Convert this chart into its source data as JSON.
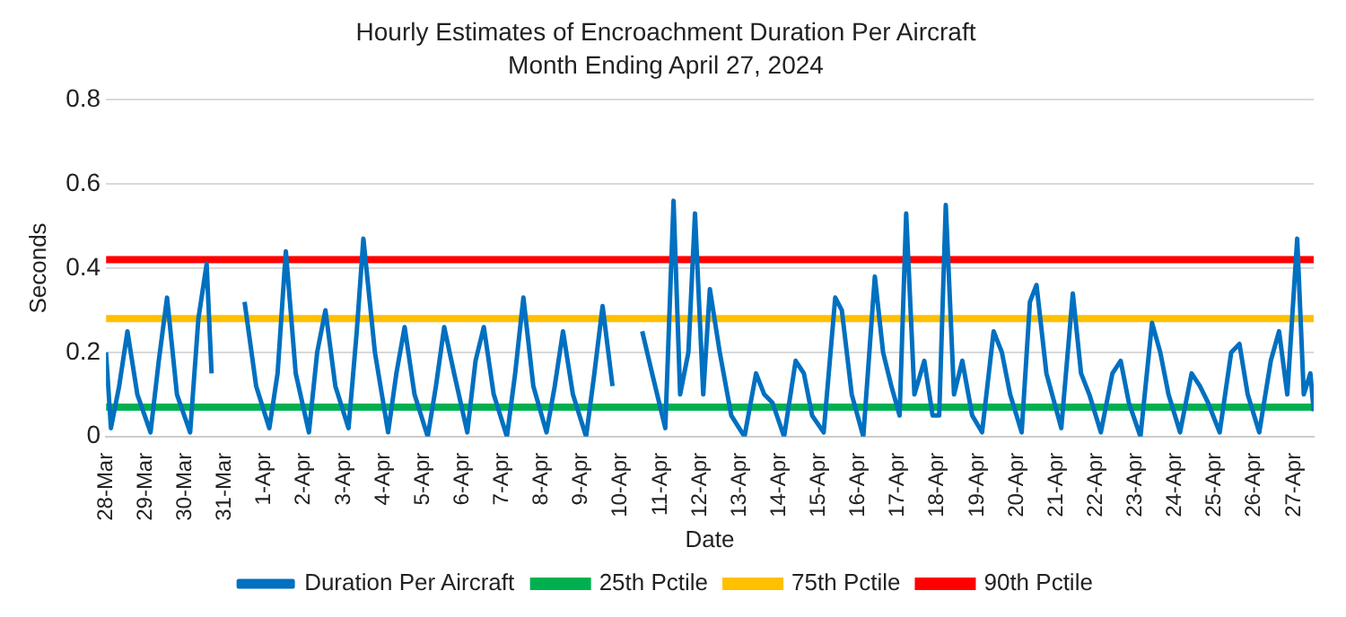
{
  "chart_data": {
    "type": "line",
    "title": "Hourly Estimates of Encroachment Duration Per Aircraft",
    "subtitle": "Month Ending April 27, 2024",
    "xlabel": "Date",
    "ylabel": "Seconds",
    "xlim": [
      "2024-03-28T00:00",
      "2024-04-27T12:00"
    ],
    "xticks": [
      {
        "value": "2024-03-28",
        "label": "28-Mar"
      },
      {
        "value": "2024-03-29",
        "label": "29-Mar"
      },
      {
        "value": "2024-03-30",
        "label": "30-Mar"
      },
      {
        "value": "2024-03-31",
        "label": "31-Mar"
      },
      {
        "value": "2024-04-01",
        "label": "1-Apr"
      },
      {
        "value": "2024-04-02",
        "label": "2-Apr"
      },
      {
        "value": "2024-04-03",
        "label": "3-Apr"
      },
      {
        "value": "2024-04-04",
        "label": "4-Apr"
      },
      {
        "value": "2024-04-05",
        "label": "5-Apr"
      },
      {
        "value": "2024-04-06",
        "label": "6-Apr"
      },
      {
        "value": "2024-04-07",
        "label": "7-Apr"
      },
      {
        "value": "2024-04-08",
        "label": "8-Apr"
      },
      {
        "value": "2024-04-09",
        "label": "9-Apr"
      },
      {
        "value": "2024-04-10",
        "label": "10-Apr"
      },
      {
        "value": "2024-04-11",
        "label": "11-Apr"
      },
      {
        "value": "2024-04-12",
        "label": "12-Apr"
      },
      {
        "value": "2024-04-13",
        "label": "13-Apr"
      },
      {
        "value": "2024-04-14",
        "label": "14-Apr"
      },
      {
        "value": "2024-04-15",
        "label": "15-Apr"
      },
      {
        "value": "2024-04-16",
        "label": "16-Apr"
      },
      {
        "value": "2024-04-17",
        "label": "17-Apr"
      },
      {
        "value": "2024-04-18",
        "label": "18-Apr"
      },
      {
        "value": "2024-04-19",
        "label": "19-Apr"
      },
      {
        "value": "2024-04-20",
        "label": "20-Apr"
      },
      {
        "value": "2024-04-21",
        "label": "21-Apr"
      },
      {
        "value": "2024-04-22",
        "label": "22-Apr"
      },
      {
        "value": "2024-04-23",
        "label": "23-Apr"
      },
      {
        "value": "2024-04-24",
        "label": "24-Apr"
      },
      {
        "value": "2024-04-25",
        "label": "25-Apr"
      },
      {
        "value": "2024-04-26",
        "label": "26-Apr"
      },
      {
        "value": "2024-04-27",
        "label": "27-Apr"
      }
    ],
    "ylim": [
      0,
      0.8
    ],
    "yticks": [
      0,
      0.2,
      0.4,
      0.6,
      0.8
    ],
    "grid": "y",
    "legend": "bottom",
    "marker": "none",
    "line_style": "solid",
    "series": [
      {
        "name": "Duration Per Aircraft",
        "color": "#0070c0",
        "x": [
          "2024-03-28T00:00",
          "2024-03-28T03:00",
          "2024-03-28T08:00",
          "2024-03-28T13:00",
          "2024-03-28T19:00",
          "2024-03-29T03:00",
          "2024-03-29T08:00",
          "2024-03-29T13:00",
          "2024-03-29T19:00",
          "2024-03-30T03:00",
          "2024-03-30T08:00",
          "2024-03-30T13:00",
          "2024-03-30T16:00",
          "2024-03-30T18:00",
          "2024-03-31T12:00",
          "2024-03-31T19:00",
          "2024-04-01T03:00",
          "2024-04-01T08:00",
          "2024-04-01T13:00",
          "2024-04-01T19:00",
          "2024-04-02T03:00",
          "2024-04-02T08:00",
          "2024-04-02T13:00",
          "2024-04-02T19:00",
          "2024-04-03T03:00",
          "2024-04-03T08:00",
          "2024-04-03T12:00",
          "2024-04-03T19:00",
          "2024-04-04T03:00",
          "2024-04-04T08:00",
          "2024-04-04T13:00",
          "2024-04-04T19:00",
          "2024-04-05T03:00",
          "2024-04-05T08:00",
          "2024-04-05T13:00",
          "2024-04-05T19:00",
          "2024-04-06T03:00",
          "2024-04-06T08:00",
          "2024-04-06T13:00",
          "2024-04-06T19:00",
          "2024-04-07T03:00",
          "2024-04-07T08:00",
          "2024-04-07T13:00",
          "2024-04-07T19:00",
          "2024-04-08T03:00",
          "2024-04-08T08:00",
          "2024-04-08T13:00",
          "2024-04-08T19:00",
          "2024-04-09T03:00",
          "2024-04-09T08:00",
          "2024-04-09T13:00",
          "2024-04-09T19:00",
          "2024-04-09T22:00",
          "2024-04-10T13:00",
          "2024-04-10T19:00",
          "2024-04-11T03:00",
          "2024-04-11T08:00",
          "2024-04-11T12:00",
          "2024-04-11T17:00",
          "2024-04-11T21:00",
          "2024-04-12T02:00",
          "2024-04-12T06:00",
          "2024-04-12T12:00",
          "2024-04-12T19:00",
          "2024-04-13T03:00",
          "2024-04-13T10:00",
          "2024-04-13T15:00",
          "2024-04-13T20:00",
          "2024-04-14T03:00",
          "2024-04-14T10:00",
          "2024-04-14T15:00",
          "2024-04-14T20:00",
          "2024-04-15T03:00",
          "2024-04-15T10:00",
          "2024-04-15T14:00",
          "2024-04-15T20:00",
          "2024-04-16T03:00",
          "2024-04-16T10:00",
          "2024-04-16T15:00",
          "2024-04-16T20:00",
          "2024-04-17T01:00",
          "2024-04-17T05:00",
          "2024-04-17T10:00",
          "2024-04-17T16:00",
          "2024-04-17T21:00",
          "2024-04-18T01:00",
          "2024-04-18T05:00",
          "2024-04-18T10:00",
          "2024-04-18T15:00",
          "2024-04-18T21:00",
          "2024-04-19T03:00",
          "2024-04-19T10:00",
          "2024-04-19T15:00",
          "2024-04-19T20:00",
          "2024-04-20T03:00",
          "2024-04-20T08:00",
          "2024-04-20T12:00",
          "2024-04-20T18:00",
          "2024-04-21T03:00",
          "2024-04-21T10:00",
          "2024-04-21T15:00",
          "2024-04-21T20:00",
          "2024-04-22T03:00",
          "2024-04-22T10:00",
          "2024-04-22T15:00",
          "2024-04-22T20:00",
          "2024-04-23T03:00",
          "2024-04-23T10:00",
          "2024-04-23T15:00",
          "2024-04-23T20:00",
          "2024-04-24T03:00",
          "2024-04-24T10:00",
          "2024-04-24T15:00",
          "2024-04-24T20:00",
          "2024-04-25T03:00",
          "2024-04-25T10:00",
          "2024-04-25T15:00",
          "2024-04-25T20:00",
          "2024-04-26T03:00",
          "2024-04-26T10:00",
          "2024-04-26T15:00",
          "2024-04-26T20:00",
          "2024-04-27T02:00",
          "2024-04-27T06:00",
          "2024-04-27T10:00",
          "2024-04-27T12:00"
        ],
        "values": [
          0.2,
          0.02,
          0.12,
          0.25,
          0.1,
          0.01,
          0.18,
          0.33,
          0.1,
          0.01,
          0.28,
          0.41,
          0.15,
          null,
          0.32,
          0.12,
          0.02,
          0.15,
          0.44,
          0.15,
          0.01,
          0.2,
          0.3,
          0.12,
          0.02,
          0.25,
          0.47,
          0.2,
          0.01,
          0.15,
          0.26,
          0.1,
          0,
          0.12,
          0.26,
          0.15,
          0.01,
          0.18,
          0.26,
          0.1,
          0,
          0.15,
          0.33,
          0.12,
          0.01,
          0.12,
          0.25,
          0.1,
          0,
          0.15,
          0.31,
          0.12,
          null,
          0.25,
          0.15,
          0.02,
          0.56,
          0.1,
          0.2,
          0.53,
          0.1,
          0.35,
          0.2,
          0.05,
          0,
          0.15,
          0.1,
          0.08,
          0,
          0.18,
          0.15,
          0.05,
          0.01,
          0.33,
          0.3,
          0.1,
          0,
          0.38,
          0.2,
          0.12,
          0.05,
          0.53,
          0.1,
          0.18,
          0.05,
          0.05,
          0.55,
          0.1,
          0.18,
          0.05,
          0.01,
          0.25,
          0.2,
          0.1,
          0.01,
          0.32,
          0.36,
          0.15,
          0.02,
          0.34,
          0.15,
          0.1,
          0.01,
          0.15,
          0.18,
          0.08,
          0,
          0.27,
          0.2,
          0.1,
          0.01,
          0.15,
          0.12,
          0.08,
          0.01,
          0.2,
          0.22,
          0.1,
          0.01,
          0.18,
          0.25,
          0.1,
          0.47,
          0.1,
          0.15,
          0.06
        ]
      }
    ],
    "ref_lines": [
      {
        "axis": "y",
        "value": 0.07,
        "label": "25th Pctile",
        "color": "#00b050"
      },
      {
        "axis": "y",
        "value": 0.28,
        "label": "75th Pctile",
        "color": "#ffc000"
      },
      {
        "axis": "y",
        "value": 0.42,
        "label": "90th Pctile",
        "color": "#ff0000"
      }
    ]
  }
}
